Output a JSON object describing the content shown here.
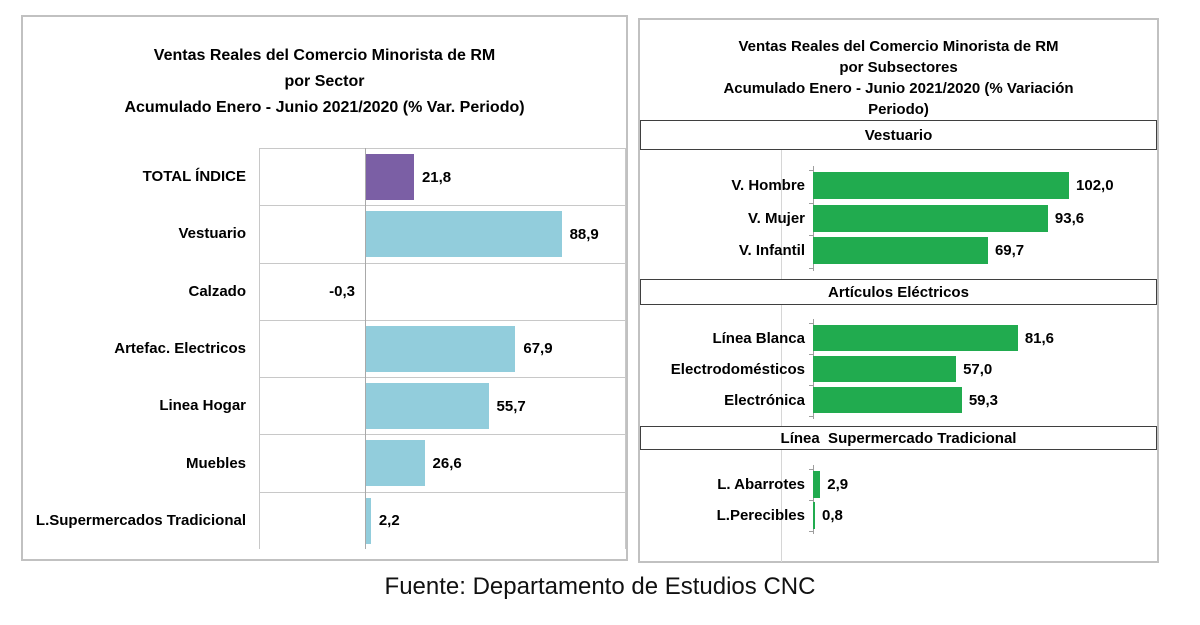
{
  "footer": "Fuente: Departamento de Estudios CNC",
  "colors": {
    "total_bar": "#7b5fa5",
    "sector_bar": "#92cddc",
    "subsector_bar": "#21ab4f",
    "panel_border": "#c1c1c1",
    "gridline": "#c8c8c8",
    "header_border": "#3f3f3f"
  },
  "chart_data": [
    {
      "type": "bar",
      "orientation": "horizontal",
      "title": "Ventas Reales del Comercio Minorista de RM por Sector Acumulado Enero - Junio 2021/2020 (% Var. Periodo)",
      "title_lines": [
        "Ventas Reales del Comercio Minorista de RM",
        "por Sector",
        "Acumulado Enero - Junio 2021/2020 (% Var. Periodo)"
      ],
      "categories": [
        "TOTAL ÍNDICE",
        "Vestuario",
        "Calzado",
        "Artefac. Electricos",
        "Linea Hogar",
        "Muebles",
        "L.Supermercados Tradicional"
      ],
      "values": [
        21.8,
        88.9,
        -0.3,
        67.9,
        55.7,
        26.6,
        2.2
      ],
      "value_labels": [
        "21,8",
        "88,9",
        "-0,3",
        "67,9",
        "55,7",
        "26,6",
        "2,2"
      ],
      "bar_colors": [
        "#7b5fa5",
        "#92cddc",
        "#92cddc",
        "#92cddc",
        "#92cddc",
        "#92cddc",
        "#92cddc"
      ],
      "xlim": [
        -64,
        119
      ],
      "grid": true,
      "legend": "none"
    },
    {
      "type": "bar",
      "orientation": "horizontal",
      "title": "Ventas Reales del Comercio Minorista de RM por Subsectores Acumulado Enero - Junio 2021/2020 (% Variación Periodo)",
      "title_lines": [
        "Ventas Reales del Comercio Minorista de RM",
        "por Subsectores",
        "Acumulado Enero - Junio 2021/2020 (% Variación",
        "Periodo)"
      ],
      "bar_color": "#21ab4f",
      "xlim": [
        0,
        135
      ],
      "grid": false,
      "legend": "none",
      "sections": [
        {
          "header": "Vestuario",
          "categories": [
            "V. Hombre",
            "V. Mujer",
            "V. Infantil"
          ],
          "values": [
            102.0,
            93.6,
            69.7
          ],
          "value_labels": [
            "102,0",
            "93,6",
            "69,7"
          ]
        },
        {
          "header": "Artículos Eléctricos",
          "categories": [
            "Línea Blanca",
            "Electrodomésticos",
            "Electrónica"
          ],
          "values": [
            81.6,
            57.0,
            59.3
          ],
          "value_labels": [
            "81,6",
            "57,0",
            "59,3"
          ]
        },
        {
          "header": "Línea  Supermercado Tradicional",
          "categories": [
            "L. Abarrotes",
            "L.Perecibles"
          ],
          "values": [
            2.9,
            0.8
          ],
          "value_labels": [
            "2,9",
            "0,8"
          ]
        }
      ]
    }
  ]
}
